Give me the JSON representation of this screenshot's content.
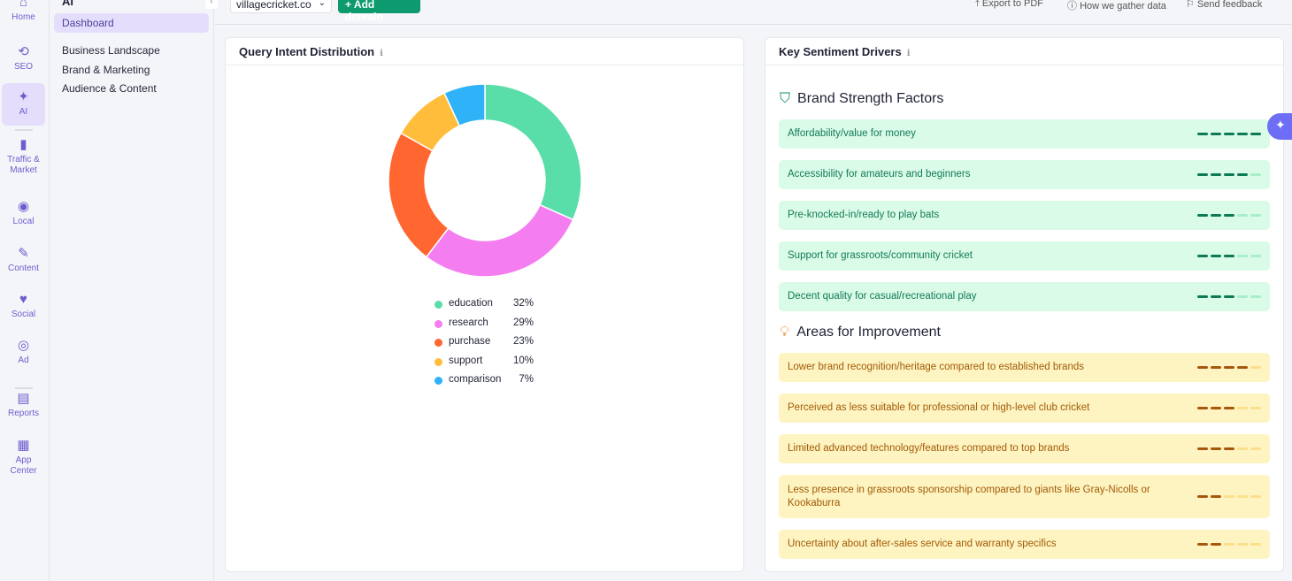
{
  "rail": [
    {
      "label": "Home",
      "icon": "home-icon",
      "g": "⌂"
    },
    {
      "label": "SEO",
      "icon": "seo-icon",
      "g": "⟲"
    },
    {
      "label": "AI",
      "icon": "ai-sparkle-icon",
      "g": "✦"
    },
    {
      "label": "Traffic & Market",
      "icon": "bar-chart-icon",
      "g": "▮"
    },
    {
      "label": "Local",
      "icon": "map-pin-icon",
      "g": "◉"
    },
    {
      "label": "Content",
      "icon": "pen-icon",
      "g": "✎"
    },
    {
      "label": "Social",
      "icon": "heart-chat-icon",
      "g": "♥"
    },
    {
      "label": "Ad",
      "icon": "target-icon",
      "g": "◎"
    },
    {
      "label": "Reports",
      "icon": "report-icon",
      "g": "▤"
    },
    {
      "label": "App Center",
      "icon": "apps-icon",
      "g": "▦"
    }
  ],
  "sidebar": {
    "heading": "AI",
    "active": "Dashboard",
    "items": [
      "Business Landscape",
      "Brand & Marketing",
      "Audience & Content"
    ]
  },
  "topbar": {
    "domain": "villagecricket.co",
    "add_domain": "+ Add domain",
    "export": "Export to PDF",
    "how": "How we gather data",
    "feedback": "Send feedback"
  },
  "chart_data": {
    "type": "pie",
    "title": "Query Intent Distribution",
    "donut": true,
    "categories": [
      "education",
      "research",
      "purchase",
      "support",
      "comparison"
    ],
    "values": [
      32,
      29,
      23,
      10,
      7
    ],
    "labels": [
      "32%",
      "29%",
      "23%",
      "10%",
      "7%"
    ],
    "colors": [
      "#59dea9",
      "#f47ef0",
      "#ff6630",
      "#ffbd3b",
      "#2fb2f8"
    ]
  },
  "sentiment": {
    "title": "Key Sentiment Drivers",
    "strength_title": "Brand Strength Factors",
    "improve_title": "Areas for Improvement",
    "max_score": 5,
    "strengths": [
      {
        "text": "Affordability/value for money",
        "score": 5
      },
      {
        "text": "Accessibility for amateurs and beginners",
        "score": 4
      },
      {
        "text": "Pre-knocked-in/ready to play bats",
        "score": 3
      },
      {
        "text": "Support for grassroots/community cricket",
        "score": 3
      },
      {
        "text": "Decent quality for casual/recreational play",
        "score": 3
      }
    ],
    "improvements": [
      {
        "text": "Lower brand recognition/heritage compared to established brands",
        "score": 4
      },
      {
        "text": "Perceived as less suitable for professional or high-level club cricket",
        "score": 3
      },
      {
        "text": "Limited advanced technology/features compared to top brands",
        "score": 3
      },
      {
        "text": "Less presence in grassroots sponsorship compared to giants like Gray-Nicolls or Kookaburra",
        "score": 2
      },
      {
        "text": "Uncertainty about after-sales service and warranty specifics",
        "score": 2
      }
    ]
  }
}
